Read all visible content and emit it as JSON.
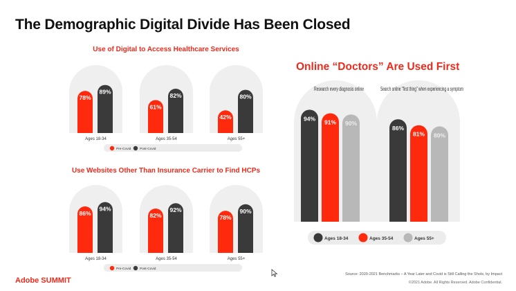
{
  "page_title": "The Demographic Digital Divide Has Been Closed",
  "brand": {
    "name": "Adobe",
    "product": "SUMMIT"
  },
  "footer": {
    "source": "Source: 2020-2021 Benchmarks – A Year Later and Covid is Still Calling the Shots, by Impact",
    "copyright": "©2021 Adobe. All Rights Reserved. Adobe Confidential."
  },
  "colors": {
    "pre": "#ff2a0d",
    "post": "#3a3a3a",
    "gray": "#b8b8b8",
    "arch": "#efefef",
    "accent": "#ee2a1c"
  },
  "chart_data": [
    {
      "type": "bar",
      "title": "Use of Digital to Access Healthcare Services",
      "categories": [
        "Ages 18-34",
        "Ages 35-54",
        "Ages 55+"
      ],
      "series": [
        {
          "name": "Pre-Covid",
          "values": [
            78,
            61,
            42
          ]
        },
        {
          "name": "Post-Covid",
          "values": [
            89,
            82,
            80
          ]
        }
      ],
      "value_labels": [
        [
          "78%",
          "61%",
          "42%"
        ],
        [
          "89%",
          "82%",
          "80%"
        ]
      ],
      "ylim": [
        0,
        100
      ],
      "legend": "bottom"
    },
    {
      "type": "bar",
      "title": "Use Websites Other Than Insurance Carrier to Find HCPs",
      "categories": [
        "Ages 18-34",
        "Ages 35-54",
        "Ages 55+"
      ],
      "series": [
        {
          "name": "Pre-Covid",
          "values": [
            86,
            82,
            78
          ]
        },
        {
          "name": "Post-Covid",
          "values": [
            94,
            92,
            90
          ]
        }
      ],
      "value_labels": [
        [
          "86%",
          "82%",
          "78%"
        ],
        [
          "94%",
          "92%",
          "90%"
        ]
      ],
      "ylim": [
        0,
        100
      ],
      "legend": "bottom"
    },
    {
      "type": "bar",
      "title": "Online “Doctors” Are Used First",
      "categories": [
        "Research every diagnosis online",
        "Search online \"first thing\" when experiencing a symptom"
      ],
      "series": [
        {
          "name": "Ages 18-34",
          "values": [
            94,
            86
          ]
        },
        {
          "name": "Ages 35-54",
          "values": [
            91,
            81
          ]
        },
        {
          "name": "Ages 55+",
          "values": [
            90,
            80
          ]
        }
      ],
      "value_labels": [
        [
          "94%",
          "86%"
        ],
        [
          "91%",
          "81%"
        ],
        [
          "90%",
          "80%"
        ]
      ],
      "ylim": [
        0,
        100
      ],
      "legend": "bottom"
    }
  ]
}
